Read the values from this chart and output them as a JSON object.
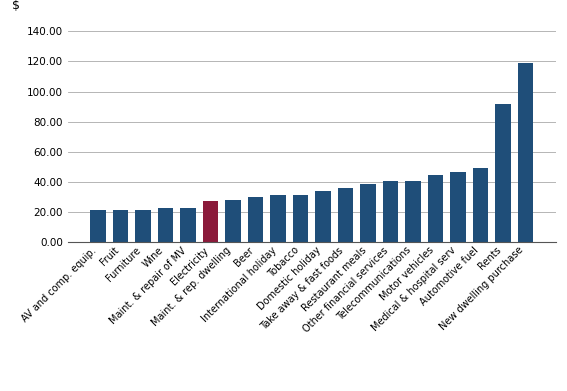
{
  "categories": [
    "AV and comp. equip.",
    "Fruit",
    "Furniture",
    "Wine",
    "Maint. & repair of MV",
    "Electricity",
    "Maint. & rep. dwelling",
    "Beer",
    "International holiday",
    "Tobacco",
    "Domestic holiday",
    "Take away & fast foods",
    "Restaurant meals",
    "Other financial services",
    "Telecommunications",
    "Motor vehicles",
    "Medical & hospital serv",
    "Automotive fuel",
    "Rents",
    "New dwelling purchase"
  ],
  "values": [
    21.5,
    21.8,
    21.8,
    22.8,
    22.8,
    27.5,
    28.0,
    30.2,
    31.2,
    31.2,
    34.0,
    36.0,
    38.5,
    40.5,
    40.5,
    45.0,
    46.5,
    49.2,
    91.5,
    119.0
  ],
  "bar_colors": [
    "#1F4E79",
    "#1F4E79",
    "#1F4E79",
    "#1F4E79",
    "#1F4E79",
    "#8B1A3A",
    "#1F4E79",
    "#1F4E79",
    "#1F4E79",
    "#1F4E79",
    "#1F4E79",
    "#1F4E79",
    "#1F4E79",
    "#1F4E79",
    "#1F4E79",
    "#1F4E79",
    "#1F4E79",
    "#1F4E79",
    "#1F4E79",
    "#1F4E79"
  ],
  "dollar_label": "$",
  "ylim": [
    0,
    140
  ],
  "yticks": [
    0,
    20,
    40,
    60,
    80,
    100,
    120,
    140
  ],
  "ytick_labels": [
    "0.00",
    "20.00",
    "40.00",
    "60.00",
    "80.00",
    "100.00",
    "120.00",
    "140.00"
  ],
  "background_color": "#ffffff",
  "grid_color": "#aaaaaa",
  "bar_edge_color": "none",
  "tick_fontsize": 7.5,
  "xlabel_fontsize": 7,
  "dollar_fontsize": 9
}
